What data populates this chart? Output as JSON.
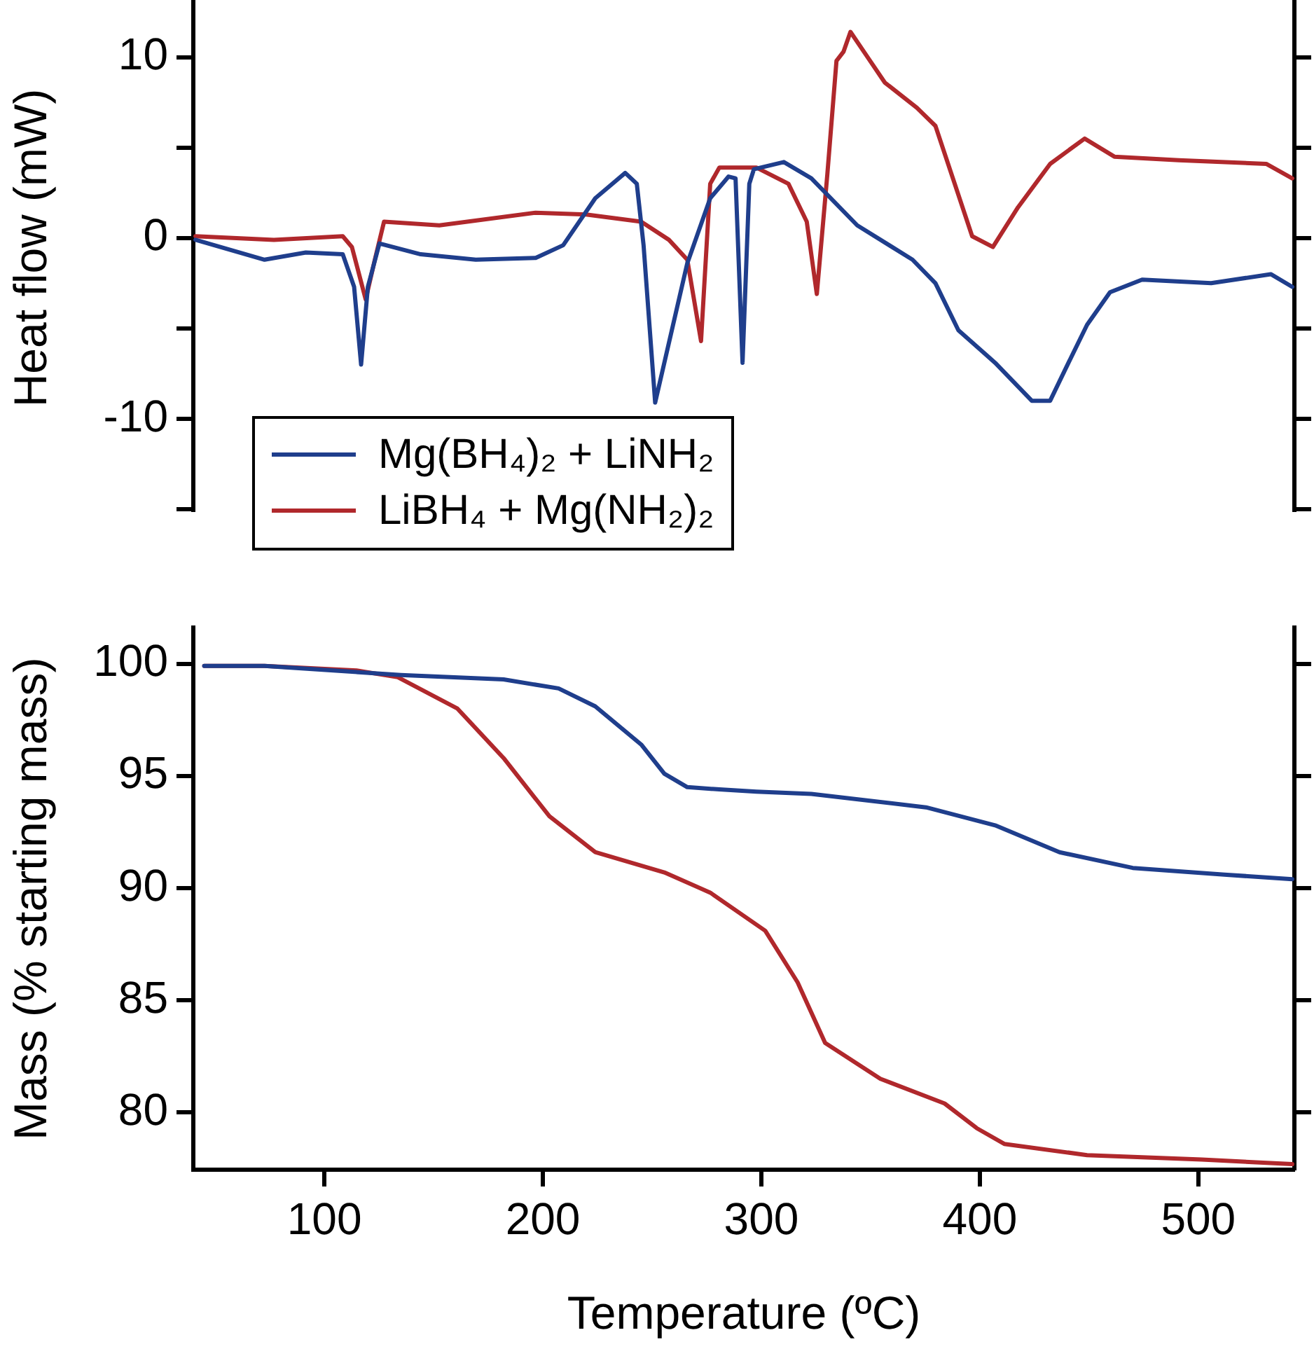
{
  "chart_data": [
    {
      "type": "line",
      "ylabel": "Heat flow (mW)",
      "xlim": [
        40,
        544
      ],
      "ylim": [
        -15.1,
        14
      ],
      "yticks": [
        {
          "value": -15,
          "label": null
        },
        -10,
        {
          "value": -5,
          "label": null
        },
        0,
        {
          "value": 5,
          "label": null
        },
        10
      ],
      "tick_labels": "y",
      "legend": "bottom left",
      "series": [
        {
          "name": "Mg(BH₄)₂ + LiNH₂",
          "color": "#1f3e8c",
          "x": [
            41,
            72.6,
            91.5,
            108.4,
            113.6,
            116.8,
            119.9,
            125.2,
            144.1,
            169.3,
            196.7,
            209.3,
            224,
            237.7,
            243,
            246.1,
            251.4,
            257.7,
            266.1,
            276.6,
            285,
            288.2,
            291.4,
            294.5,
            296.6,
            310.3,
            322.9,
            343.9,
            369.2,
            379.7,
            390.2,
            407,
            423.8,
            432.2,
            440.6,
            449.1,
            459.6,
            474.3,
            505.9,
            533.2,
            543
          ],
          "values": [
            -0.1,
            -1.2,
            -0.8,
            -0.9,
            -2.7,
            -7.0,
            -2.7,
            -0.3,
            -0.9,
            -1.2,
            -1.1,
            -0.4,
            2.2,
            3.6,
            3.0,
            -0.4,
            -9.1,
            -5.8,
            -1.4,
            2.2,
            3.4,
            3.3,
            -6.9,
            3.0,
            3.8,
            4.2,
            3.3,
            0.7,
            -1.2,
            -2.5,
            -5.1,
            -6.9,
            -9.0,
            -9.0,
            -6.9,
            -4.8,
            -3.0,
            -2.3,
            -2.5,
            -2.0,
            -2.7
          ]
        },
        {
          "name": "LiBH₄ + Mg(NH₂)₂",
          "color": "#b0282c",
          "x": [
            41,
            76.9,
            108.4,
            112.6,
            118.9,
            123.1,
            127.3,
            152.6,
            196.7,
            219.8,
            245,
            257.7,
            266.1,
            272.4,
            276.6,
            280.8,
            297.7,
            312.4,
            320.8,
            325.4,
            330.2,
            334.4,
            337.6,
            340.8,
            348.1,
            356.5,
            371.2,
            379.7,
            396.5,
            406,
            417.5,
            432.2,
            448,
            461.6,
            491.1,
            531.1,
            543
          ],
          "values": [
            0.1,
            -0.1,
            0.1,
            -0.5,
            -3.4,
            -1.2,
            0.9,
            0.7,
            1.4,
            1.3,
            0.9,
            -0.1,
            -1.2,
            -5.7,
            3.0,
            3.9,
            3.9,
            3.0,
            0.9,
            -3.1,
            3.5,
            9.8,
            10.3,
            11.4,
            10.1,
            8.6,
            7.2,
            6.2,
            0.1,
            -0.5,
            1.7,
            4.1,
            5.5,
            4.5,
            4.3,
            4.1,
            3.3
          ]
        }
      ]
    },
    {
      "type": "line",
      "xlabel": "Temperature (ºC)",
      "ylabel": "Mass (% starting mass)",
      "xlim": [
        40,
        544
      ],
      "xticks": [
        100,
        200,
        300,
        400,
        500
      ],
      "ylim": [
        77.45,
        101.6
      ],
      "yticks": [
        80,
        85,
        90,
        95,
        100
      ],
      "series": [
        {
          "color": "#1f3e8c",
          "x": [
            45,
            72.6,
            135,
            182,
            207.2,
            224,
            245,
            255.6,
            266.1,
            280.8,
            297.7,
            322.9,
            375.4,
            407,
            436.5,
            470,
            512,
            543
          ],
          "values": [
            99.9,
            99.9,
            99.5,
            99.3,
            98.9,
            98.1,
            96.4,
            95.1,
            94.5,
            94.4,
            94.3,
            94.2,
            93.6,
            92.8,
            91.6,
            90.9,
            90.6,
            90.4
          ]
        },
        {
          "color": "#b0282c",
          "x": [
            45,
            72.6,
            114.7,
            133.6,
            160.9,
            182,
            203,
            224,
            255.6,
            276.6,
            301.8,
            316.6,
            329.2,
            354.5,
            383.9,
            398.6,
            411.2,
            449.1,
            501.6,
            543
          ],
          "values": [
            99.9,
            99.9,
            99.7,
            99.4,
            98,
            95.8,
            93.2,
            91.6,
            90.7,
            89.8,
            88.1,
            85.8,
            83.1,
            81.5,
            80.4,
            79.3,
            78.6,
            78.1,
            77.9,
            77.7
          ]
        }
      ]
    }
  ]
}
